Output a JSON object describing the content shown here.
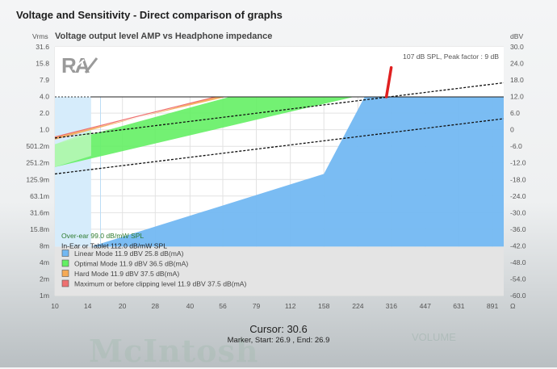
{
  "page": {
    "title": "Voltage and Sensitivity - Direct comparison of graphs"
  },
  "chart_data": {
    "type": "area",
    "title": "Voltage output level AMP vs Headphone impedance",
    "xlabel": "Ω",
    "ylabel_left": "Vrms",
    "ylabel_right": "dBV",
    "x_scale": "log",
    "x_range": [
      10,
      1000
    ],
    "x_ticks": [
      "10",
      "14",
      "20",
      "28",
      "40",
      "56",
      "79",
      "112",
      "158",
      "224",
      "316",
      "447",
      "631",
      "891"
    ],
    "y_left_ticks": [
      "31.6",
      "15.8",
      "7.9",
      "4.0",
      "2.0",
      "1.0",
      "501.2m",
      "251.2m",
      "125.9m",
      "63.1m",
      "31.6m",
      "15.8m",
      "8m",
      "4m",
      "2m",
      "1m"
    ],
    "y_right_ticks": [
      "30.0",
      "24.0",
      "18.0",
      "12.0",
      "6.0",
      "0",
      "-6.0",
      "-12.0",
      "-18.0",
      "-24.0",
      "-30.0",
      "-36.0",
      "-42.0",
      "-48.0",
      "-54.0",
      "-60.0"
    ],
    "y_range_dbv": [
      -60,
      30
    ],
    "grid": true,
    "annotation": "107 dB SPL, Peak factor : 9 dB",
    "series": [
      {
        "name": "Linear Mode 11.9 dBV 25.8 dB(mA)",
        "color": "#73b8f2",
        "points": [
          [
            14.5,
            -42.3
          ],
          [
            158,
            -16.0
          ],
          [
            240,
            11.9
          ],
          [
            1000,
            11.9
          ],
          [
            1000,
            -42.3
          ]
        ]
      },
      {
        "name": "Optimal Mode 11.9 dBV 36.5 dB(mA)",
        "color": "#64f064",
        "points": [
          [
            10,
            -5.3
          ],
          [
            60,
            11.9
          ],
          [
            215,
            11.9
          ],
          [
            10,
            -13.5
          ]
        ]
      },
      {
        "name": "Hard Mode 11.9 dBV 37.5 dB(mA)",
        "color": "#f5aa55",
        "points": [
          [
            10,
            -3.6
          ],
          [
            52,
            11.9
          ],
          [
            58,
            11.9
          ],
          [
            10,
            -2.6
          ]
        ]
      },
      {
        "name": "Maximum or before clipping level 11.9 dBV 37.5 dB(mA)",
        "color": "#ee7070",
        "points": [
          [
            10,
            -2.6
          ],
          [
            52,
            11.9
          ]
        ]
      }
    ],
    "reference_lines": [
      {
        "name": "Over-ear 99.0 dB/mW SPL",
        "label_color": "#2d7a2d",
        "points": [
          [
            10,
            -3.0
          ],
          [
            1000,
            17.0
          ]
        ]
      },
      {
        "name": "In-Ear or Tablet 112.0 dB/mW SPL",
        "label_color": "#222222",
        "points": [
          [
            10,
            -16.0
          ],
          [
            1000,
            4.0
          ]
        ]
      }
    ],
    "marker": {
      "x": 300,
      "y_from_dbv": 11.9,
      "y_to_dbv": 22.5,
      "color": "#e02020"
    },
    "cursor": "Cursor: 30.6",
    "marker_readout": "Marker, Start: 26.9 , End: 26.9"
  },
  "background": {
    "watermark": "McIntosh",
    "deco_text": "VOLUME"
  }
}
